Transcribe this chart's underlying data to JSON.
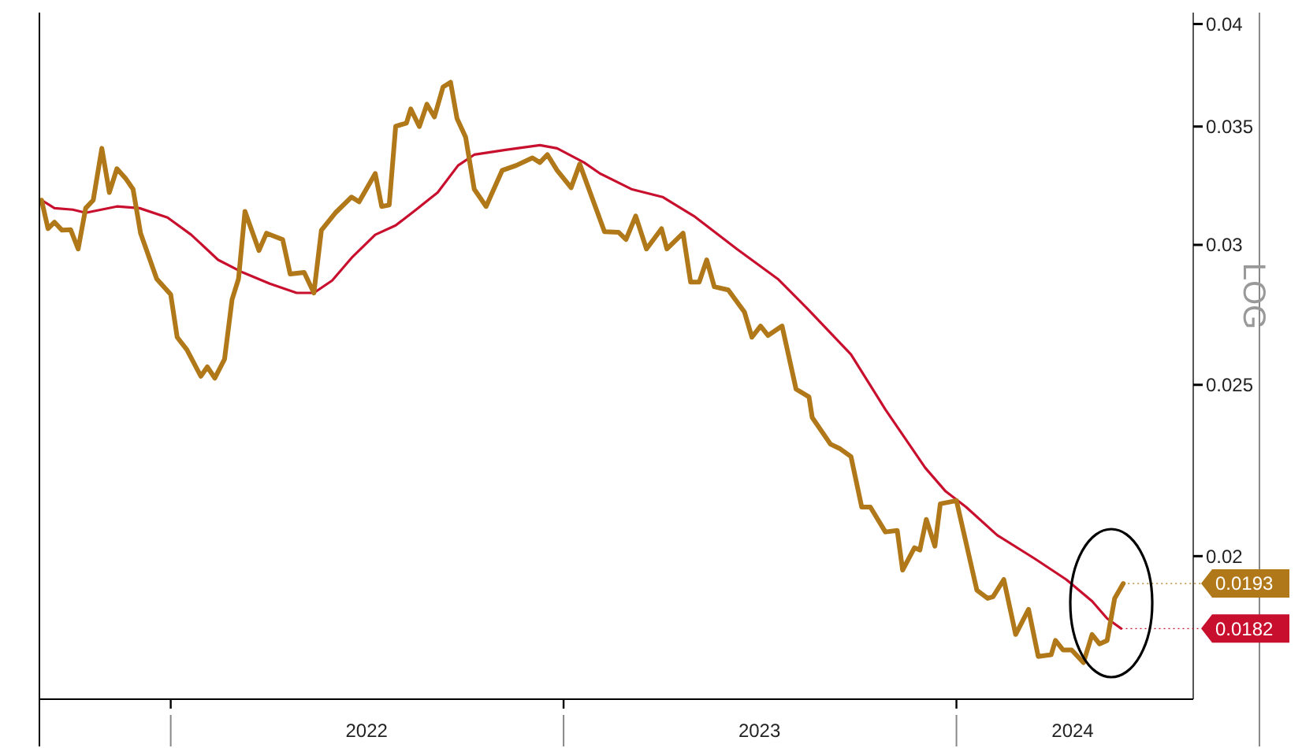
{
  "chart_data": {
    "type": "line",
    "xlim": [
      "2021-09-01",
      "2024-08-08"
    ],
    "ylim": [
      0.0166,
      0.0406
    ],
    "log": true,
    "grid": false,
    "line_style": "solid",
    "xticks": [
      {
        "value": "2022-01-01",
        "label": null
      },
      {
        "value": "2022-07-02",
        "label": "2022"
      },
      {
        "value": "2023-01-01",
        "label": null
      },
      {
        "value": "2023-07-02",
        "label": "2023"
      },
      {
        "value": "2024-01-01",
        "label": null
      },
      {
        "value": "2024-04-18",
        "label": "2024"
      }
    ],
    "yticks": [
      0.02,
      0.025,
      0.03,
      0.035,
      0.04
    ],
    "annotations": [
      "LOG"
    ],
    "series": [
      {
        "color": "#b07818",
        "x": [
          "2021-09-03",
          "2021-09-09",
          "2021-09-15",
          "2021-09-22",
          "2021-09-30",
          "2021-10-07",
          "2021-10-14",
          "2021-10-21",
          "2021-10-29",
          "2021-11-05",
          "2021-11-12",
          "2021-11-20",
          "2021-11-27",
          "2021-12-04",
          "2021-12-19",
          "2022-01-01",
          "2022-01-07",
          "2022-01-16",
          "2022-01-29",
          "2022-02-04",
          "2022-02-11",
          "2022-02-20",
          "2022-02-27",
          "2022-03-05",
          "2022-03-11",
          "2022-03-24",
          "2022-03-31",
          "2022-04-15",
          "2022-04-22",
          "2022-05-05",
          "2022-05-14",
          "2022-05-21",
          "2022-06-03",
          "2022-06-18",
          "2022-06-25",
          "2022-07-10",
          "2022-07-16",
          "2022-07-23",
          "2022-07-29",
          "2022-08-08",
          "2022-08-12",
          "2022-08-20",
          "2022-08-27",
          "2022-09-03",
          "2022-09-11",
          "2022-09-18",
          "2022-09-24",
          "2022-10-02",
          "2022-10-10",
          "2022-10-21",
          "2022-11-05",
          "2022-11-18",
          "2022-12-03",
          "2022-12-10",
          "2022-12-17",
          "2022-12-26",
          "2023-01-08",
          "2023-01-16",
          "2023-02-08",
          "2023-02-21",
          "2023-02-28",
          "2023-03-09",
          "2023-03-19",
          "2023-04-02",
          "2023-04-07",
          "2023-04-22",
          "2023-04-29",
          "2023-05-07",
          "2023-05-14",
          "2023-05-21",
          "2023-06-03",
          "2023-06-18",
          "2023-06-25",
          "2023-07-03",
          "2023-07-10",
          "2023-07-23",
          "2023-08-05",
          "2023-08-17",
          "2023-08-20",
          "2023-09-06",
          "2023-09-15",
          "2023-09-25",
          "2023-10-05",
          "2023-10-13",
          "2023-10-27",
          "2023-11-07",
          "2023-11-12",
          "2023-11-23",
          "2023-11-28",
          "2023-12-04",
          "2023-12-12",
          "2023-12-17",
          "2024-01-01",
          "2024-01-20",
          "2024-01-30",
          "2024-02-04",
          "2024-02-14",
          "2024-02-25",
          "2024-03-08",
          "2024-03-17",
          "2024-03-29",
          "2024-04-02",
          "2024-04-09",
          "2024-04-17",
          "2024-04-28",
          "2024-05-06",
          "2024-05-13",
          "2024-05-20",
          "2024-05-27",
          "2024-06-04"
        ],
        "values": [
          0.0318,
          0.03064,
          0.0309,
          0.03058,
          0.0306,
          0.02984,
          0.03147,
          0.0318,
          0.03402,
          0.03212,
          0.03313,
          0.03272,
          0.03226,
          0.03046,
          0.0287,
          0.02812,
          0.0266,
          0.02617,
          0.02528,
          0.02559,
          0.02522,
          0.02585,
          0.02794,
          0.0287,
          0.03134,
          0.02978,
          0.03046,
          0.03021,
          0.02888,
          0.02894,
          0.02818,
          0.03058,
          0.03128,
          0.03193,
          0.03173,
          0.03292,
          0.03154,
          0.0316,
          0.03501,
          0.03516,
          0.03581,
          0.035,
          0.03603,
          0.03544,
          0.03685,
          0.03708,
          0.03537,
          0.03452,
          0.03226,
          0.03154,
          0.03306,
          0.03327,
          0.0336,
          0.0334,
          0.03374,
          0.03306,
          0.03232,
          0.03333,
          0.03052,
          0.0305,
          0.03021,
          0.03115,
          0.02984,
          0.03064,
          0.02984,
          0.03046,
          0.02858,
          0.02858,
          0.02942,
          0.02841,
          0.02829,
          0.02749,
          0.0266,
          0.02699,
          0.02666,
          0.02699,
          0.02486,
          0.02461,
          0.02396,
          0.02314,
          0.023,
          0.02277,
          0.02132,
          0.02132,
          0.02064,
          0.02068,
          0.01964,
          0.02022,
          0.02016,
          0.02098,
          0.02026,
          0.02141,
          0.0215,
          0.01913,
          0.01893,
          0.01897,
          0.0194,
          0.01806,
          0.01866,
          0.01755,
          0.01759,
          0.01792,
          0.0177,
          0.0177,
          0.01741,
          0.01806,
          0.01784,
          0.01792,
          0.01893,
          0.0193
        ],
        "value_labels": [
          null,
          null,
          null,
          null,
          null,
          null,
          null,
          null,
          null,
          null,
          null,
          null,
          null,
          null,
          null,
          null,
          null,
          null,
          null,
          null,
          null,
          null,
          null,
          null,
          null,
          null,
          null,
          null,
          null,
          null,
          null,
          null,
          null,
          null,
          null,
          null,
          null,
          null,
          null,
          null,
          null,
          null,
          null,
          null,
          null,
          null,
          null,
          null,
          null,
          null,
          null,
          null,
          null,
          null,
          null,
          null,
          null,
          null,
          null,
          null,
          null,
          null,
          null,
          null,
          null,
          null,
          null,
          null,
          null,
          null,
          null,
          null,
          null,
          null,
          null,
          null,
          null,
          null,
          null,
          null,
          null,
          null,
          null,
          null,
          null,
          null,
          null,
          null,
          null,
          null,
          null,
          null,
          null,
          null,
          null,
          null,
          null,
          null,
          null,
          null,
          null,
          null,
          null,
          null,
          null,
          null,
          null,
          null,
          null,
          "0.0193"
        ]
      },
      {
        "color": "#c8102e",
        "x": [
          "2021-09-03",
          "2021-09-15",
          "2021-10-02",
          "2021-10-14",
          "2021-11-12",
          "2021-12-03",
          "2021-12-29",
          "2022-01-20",
          "2022-02-14",
          "2022-03-09",
          "2022-04-03",
          "2022-04-28",
          "2022-05-14",
          "2022-05-31",
          "2022-06-19",
          "2022-07-10",
          "2022-07-29",
          "2022-08-17",
          "2022-09-06",
          "2022-09-25",
          "2022-10-10",
          "2022-11-08",
          "2022-12-10",
          "2022-12-26",
          "2023-01-20",
          "2023-02-04",
          "2023-03-05",
          "2023-04-03",
          "2023-05-02",
          "2023-06-11",
          "2023-07-19",
          "2023-08-17",
          "2023-09-25",
          "2023-10-27",
          "2023-12-03",
          "2023-12-22",
          "2024-01-10",
          "2024-02-08",
          "2024-03-14",
          "2024-04-12",
          "2024-05-06",
          "2024-05-20",
          "2024-06-02"
        ],
        "values": [
          0.0318,
          0.03147,
          0.03141,
          0.03128,
          0.03154,
          0.03147,
          0.03109,
          0.0304,
          0.02942,
          0.02894,
          0.02852,
          0.02818,
          0.02818,
          0.02864,
          0.02954,
          0.0304,
          0.03077,
          0.03141,
          0.03212,
          0.03327,
          0.03374,
          0.03395,
          0.03416,
          0.03402,
          0.0334,
          0.03292,
          0.03226,
          0.03193,
          0.03115,
          0.02984,
          0.0287,
          0.02755,
          0.02601,
          0.02421,
          0.02244,
          0.02176,
          0.02132,
          0.02055,
          0.01993,
          0.0194,
          0.01886,
          0.01844,
          0.0182
        ],
        "value_labels": [
          null,
          null,
          null,
          null,
          null,
          null,
          null,
          null,
          null,
          null,
          null,
          null,
          null,
          null,
          null,
          null,
          null,
          null,
          null,
          null,
          null,
          null,
          null,
          null,
          null,
          null,
          null,
          null,
          null,
          null,
          null,
          null,
          null,
          null,
          null,
          null,
          null,
          null,
          null,
          null,
          null,
          null,
          "0.0182"
        ]
      }
    ]
  }
}
